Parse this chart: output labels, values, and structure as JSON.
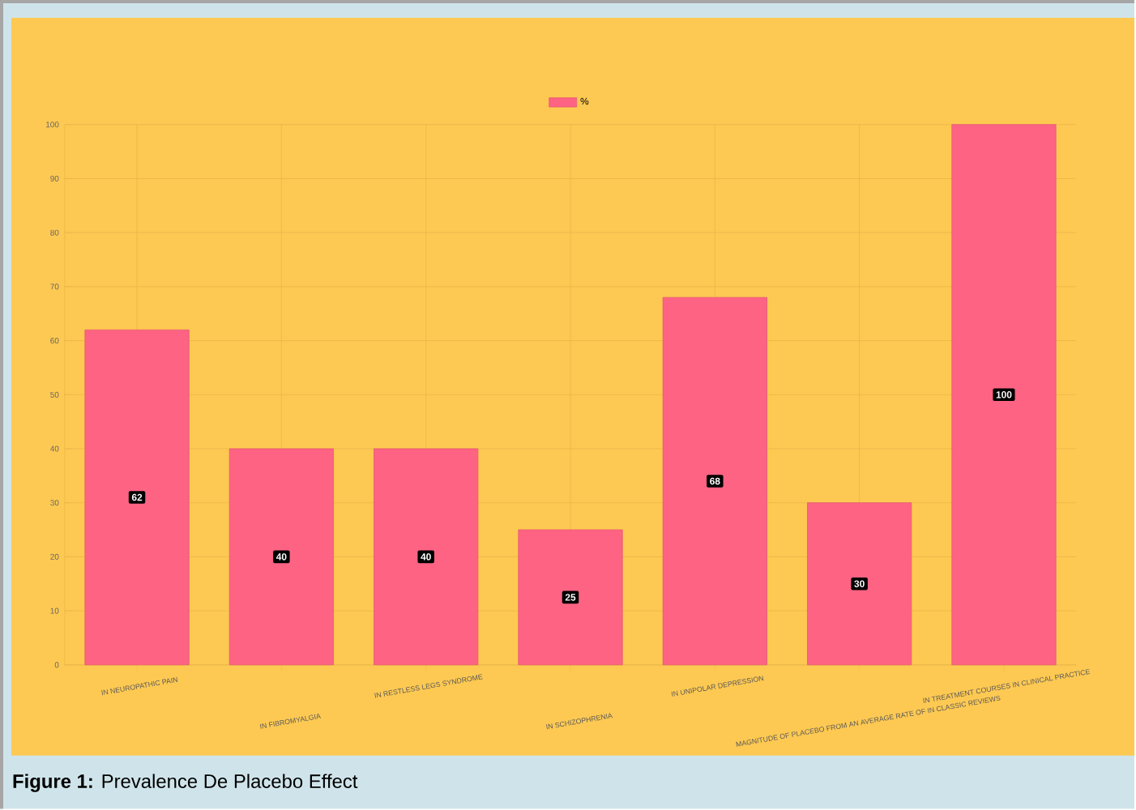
{
  "chart_data": {
    "type": "bar",
    "categories": [
      "IN NEUROPATHIC PAIN",
      "IN FIBROMYALGIA",
      "IN RESTLESS LEGS SYNDROME",
      "IN SCHIZOPHRENIA",
      "IN UNIPOLAR DEPRESSION",
      "MAGNITUDE OF PLACEBO FROM AN AVERAGE RATE OF IN CLASSIC REVIEWS",
      "IN TREATMENT COURSES IN CLINICAL PRACTICE"
    ],
    "series": [
      {
        "name": "%",
        "color": "#fe6383",
        "values": [
          62,
          40,
          40,
          25,
          68,
          30,
          100
        ]
      }
    ],
    "ylim": [
      0,
      100
    ],
    "yticks": [
      0,
      10,
      20,
      30,
      40,
      50,
      60,
      70,
      80,
      90,
      100
    ],
    "grid": true,
    "legend": "top",
    "data_labels": true,
    "annotations": [
      "**Figure 1:** Prevalence De Placebo Effect"
    ]
  }
}
